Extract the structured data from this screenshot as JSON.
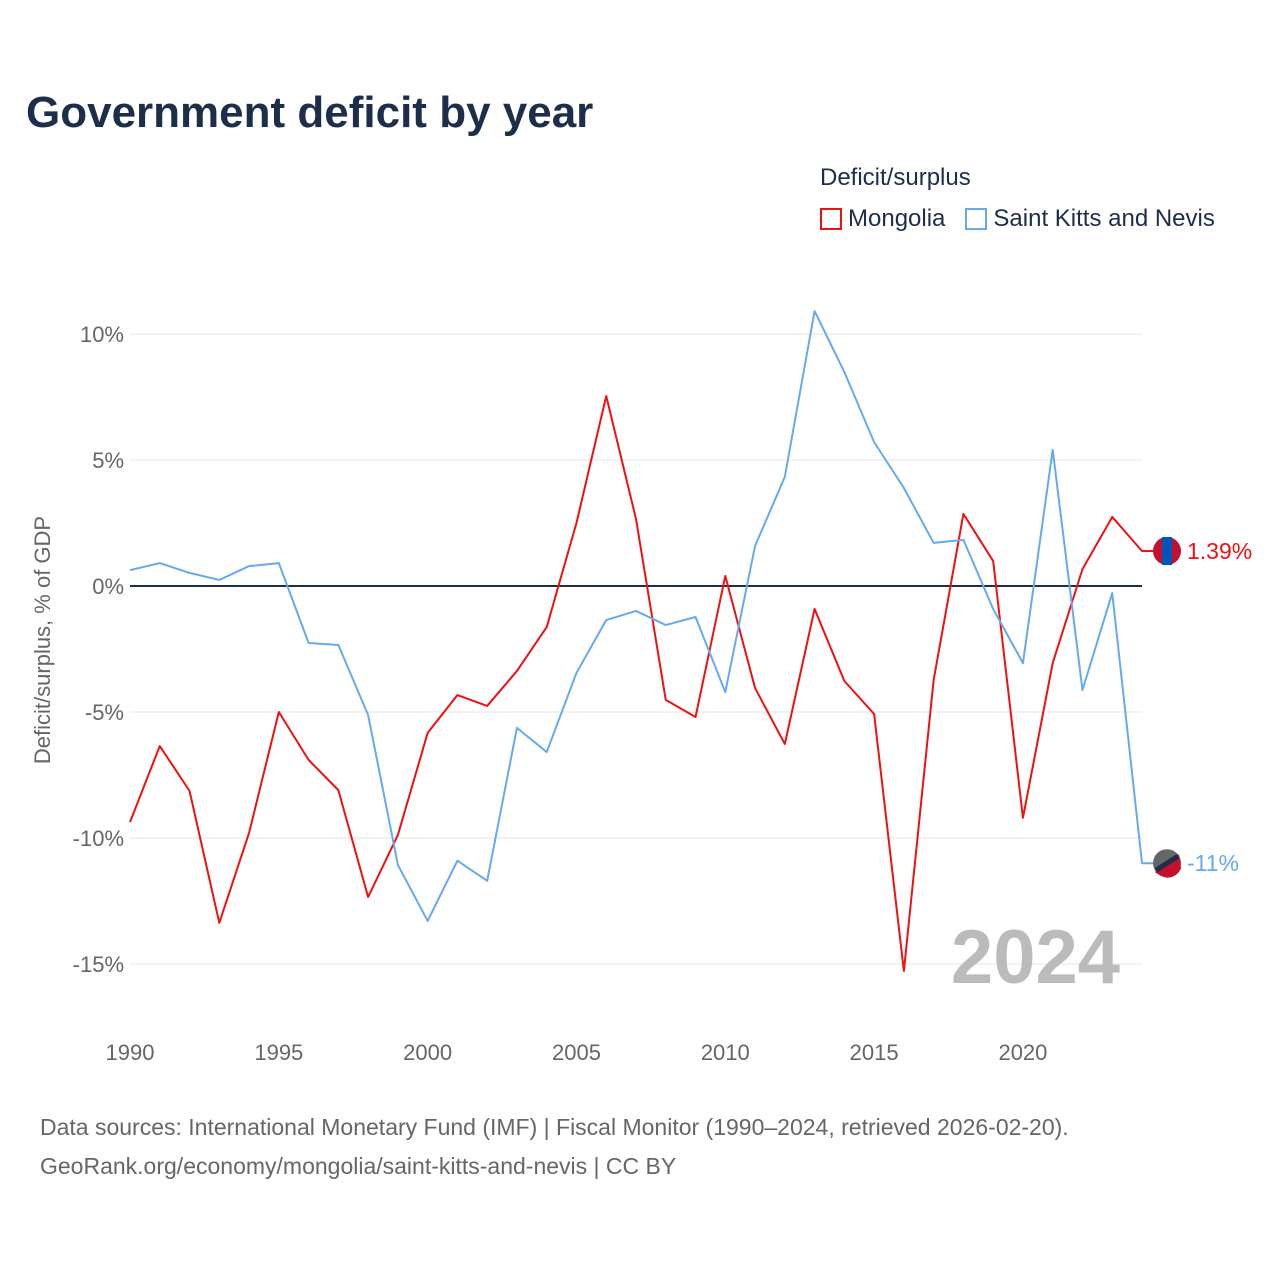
{
  "chart_data": {
    "type": "line",
    "title": "Government deficit by year",
    "ylabel": "Deficit/surplus, % of GDP",
    "xlabel": "",
    "ylim": [
      -17,
      12
    ],
    "xlim": [
      1990,
      2024
    ],
    "yticks": [
      10,
      5,
      0,
      -5,
      -10,
      -15
    ],
    "ytick_labels": [
      "10%",
      "5%",
      "0%",
      "-5%",
      "-10%",
      "-15%"
    ],
    "xticks": [
      1990,
      1995,
      2000,
      2005,
      2010,
      2015,
      2020
    ],
    "xtick_labels": [
      "1990",
      "1995",
      "2000",
      "2005",
      "2010",
      "2015",
      "2020"
    ],
    "legend_title": "Deficit/surplus",
    "legend_position": "top-right",
    "year_label": "2024",
    "x": [
      1990,
      1991,
      1992,
      1993,
      1994,
      1995,
      1996,
      1997,
      1998,
      1999,
      2000,
      2001,
      2002,
      2003,
      2004,
      2005,
      2006,
      2007,
      2008,
      2009,
      2010,
      2011,
      2012,
      2013,
      2014,
      2015,
      2016,
      2017,
      2018,
      2019,
      2020,
      2021,
      2022,
      2023,
      2024
    ],
    "series": [
      {
        "name": "Mongolia",
        "color": "#ee1111",
        "end_label": "1.39%",
        "values": [
          -9.37,
          -6.35,
          -8.13,
          -13.37,
          -9.8,
          -5.0,
          -6.9,
          -8.1,
          -12.34,
          -9.88,
          -5.83,
          -4.33,
          -4.76,
          -3.37,
          -1.63,
          2.5,
          7.54,
          2.66,
          -4.52,
          -5.2,
          0.4,
          -4.05,
          -6.27,
          -0.91,
          -3.77,
          -5.08,
          -15.28,
          -3.73,
          2.86,
          0.99,
          -9.2,
          -3.06,
          0.67,
          2.74,
          1.39
        ]
      },
      {
        "name": "Saint Kitts and Nevis",
        "color": "#66aaee",
        "end_label": "-11%",
        "values": [
          0.63,
          0.91,
          0.52,
          0.24,
          0.79,
          0.91,
          -2.26,
          -2.34,
          -5.12,
          -11.07,
          -13.29,
          -10.9,
          -11.7,
          -5.63,
          -6.59,
          -3.45,
          -1.35,
          -0.99,
          -1.55,
          -1.23,
          -4.21,
          1.59,
          4.33,
          10.91,
          8.49,
          5.71,
          3.89,
          1.71,
          1.83,
          -0.91,
          -3.06,
          5.4,
          -4.13,
          -0.28,
          -11.0
        ]
      }
    ]
  },
  "source_line1": "Data sources: International Monetary Fund (IMF) | Fiscal Monitor (1990–2024, retrieved 2026-02-20).",
  "source_line2": "GeoRank.org/economy/mongolia/saint-kitts-and-nevis | CC BY"
}
